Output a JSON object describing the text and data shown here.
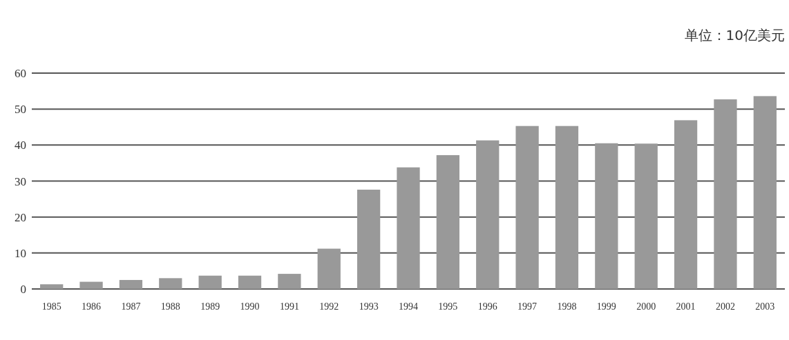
{
  "chart_data": {
    "type": "bar",
    "annotations": [
      "单位：10亿美元"
    ],
    "categories": [
      "1985",
      "1986",
      "1987",
      "1988",
      "1989",
      "1990",
      "1991",
      "1992",
      "1993",
      "1994",
      "1995",
      "1996",
      "1997",
      "1998",
      "1999",
      "2000",
      "2001",
      "2002",
      "2003"
    ],
    "values": [
      1.3,
      2.0,
      2.5,
      3.0,
      3.7,
      3.7,
      4.2,
      11.2,
      27.6,
      33.8,
      37.2,
      41.3,
      45.3,
      45.3,
      40.5,
      40.4,
      46.9,
      52.7,
      53.6
    ],
    "color": "#999999",
    "ylim": [
      0,
      60
    ],
    "yticks": [
      0,
      10,
      20,
      30,
      40,
      50,
      60
    ],
    "grid": "y"
  }
}
